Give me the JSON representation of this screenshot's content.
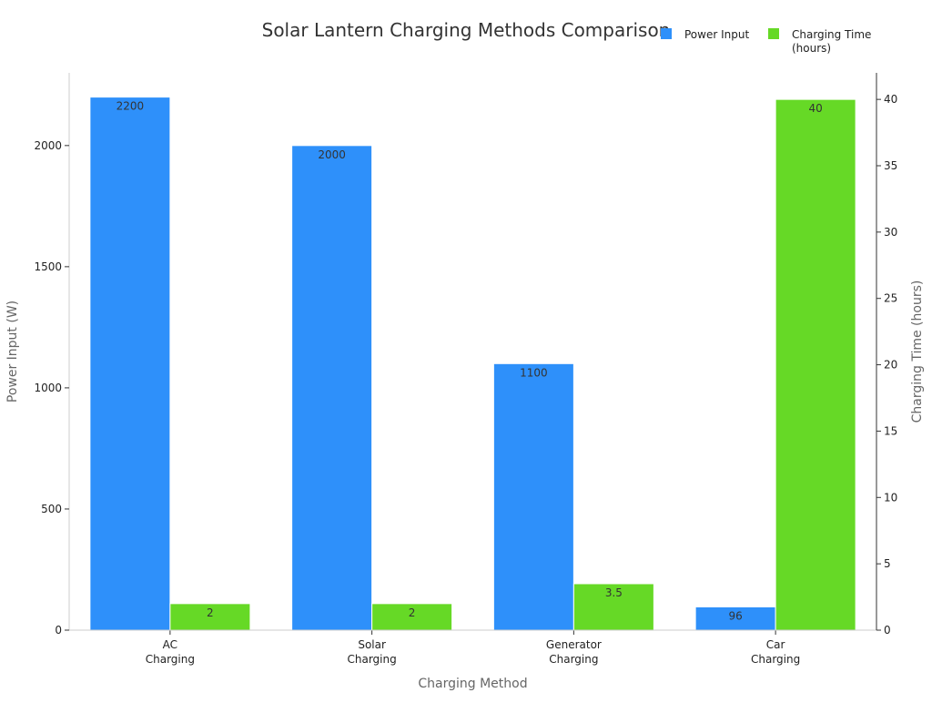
{
  "chart_data": {
    "type": "bar",
    "title": "Solar Lantern Charging Methods Comparison",
    "xlabel": "Charging Method",
    "ylabel_left": "Power Input (W)",
    "ylabel_right": "Charging Time (hours)",
    "categories": [
      [
        "AC",
        "Charging"
      ],
      [
        "Solar",
        "Charging"
      ],
      [
        "Generator",
        "Charging"
      ],
      [
        "Car",
        "Charging"
      ]
    ],
    "series": [
      {
        "name": "Power Input",
        "axis": "left",
        "color": "#2e90fa",
        "values": [
          2200,
          2000,
          1100,
          96
        ],
        "labels": [
          "2200",
          "2000",
          "1100",
          "96"
        ]
      },
      {
        "name": "Charging Time (hours)",
        "legend_lines": [
          "Charging Time",
          "(hours)"
        ],
        "axis": "right",
        "color": "#66d926",
        "values": [
          2,
          2,
          3.5,
          40
        ],
        "labels": [
          "2",
          "2",
          "3.5",
          "40"
        ]
      }
    ],
    "y_left": {
      "lim": [
        0,
        2300
      ],
      "ticks": [
        0,
        500,
        1000,
        1500,
        2000
      ]
    },
    "y_right": {
      "lim": [
        0,
        42
      ],
      "ticks": [
        0,
        5,
        10,
        15,
        20,
        25,
        30,
        35,
        40
      ]
    },
    "grid": false,
    "legend_position": "top-right"
  }
}
